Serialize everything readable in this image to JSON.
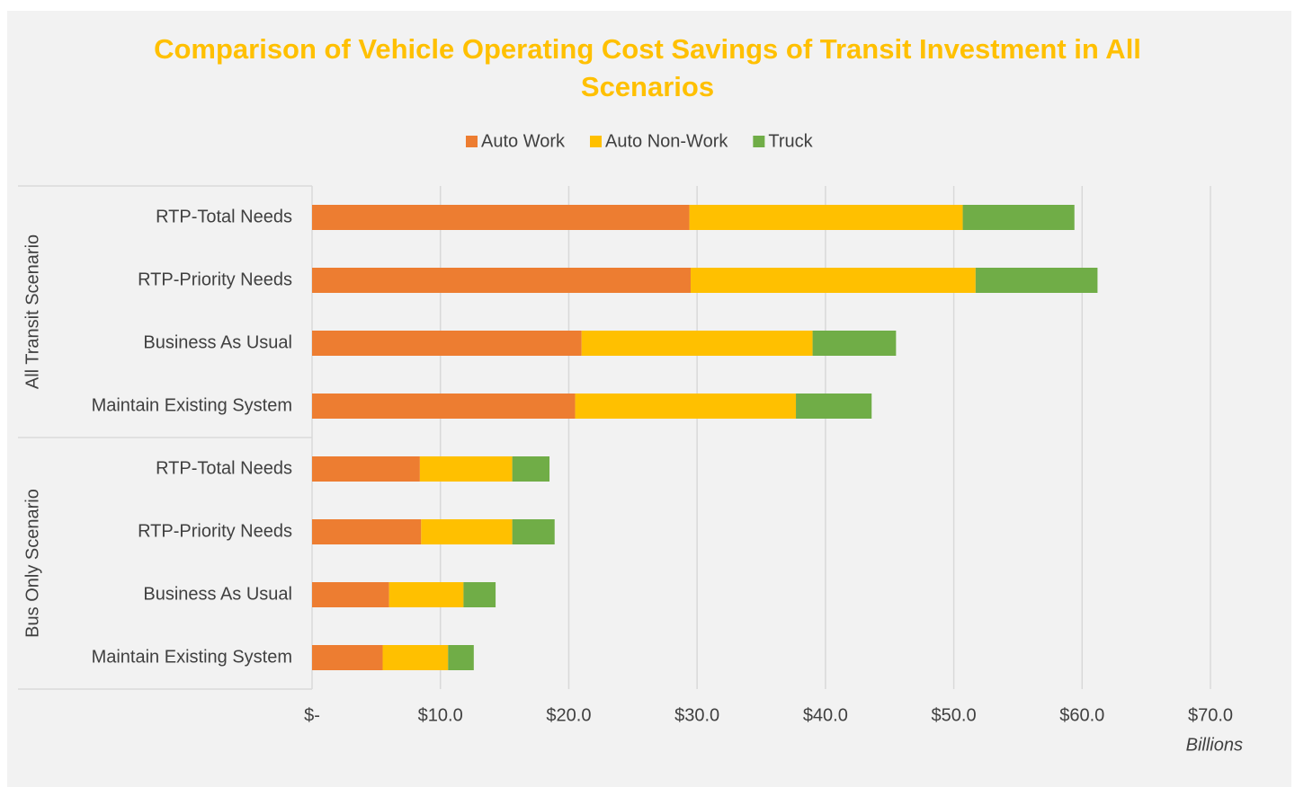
{
  "chart_data": {
    "type": "stacked-barh",
    "title": "Comparison of Vehicle Operating Cost Savings of Transit Investment in All Scenarios",
    "groups": [
      {
        "name": "All Transit Scenario",
        "categories": [
          "RTP-Total Needs",
          "RTP-Priority Needs",
          "Business As Usual",
          "Maintain Existing System"
        ]
      },
      {
        "name": "Bus Only Scenario",
        "categories": [
          "RTP-Total Needs",
          "RTP-Priority Needs",
          "Business As Usual",
          "Maintain Existing System"
        ]
      }
    ],
    "series": [
      {
        "name": "Auto Work",
        "color": "#ed7d31",
        "values": [
          29.4,
          29.5,
          21.0,
          20.5,
          8.4,
          8.5,
          6.0,
          5.5
        ]
      },
      {
        "name": "Auto Non-Work",
        "color": "#ffc000",
        "values": [
          21.3,
          22.2,
          18.0,
          17.2,
          7.2,
          7.1,
          5.8,
          5.1
        ]
      },
      {
        "name": "Truck",
        "color": "#70ad47",
        "values": [
          8.7,
          9.5,
          6.5,
          5.9,
          2.9,
          3.3,
          2.5,
          2.0
        ]
      }
    ],
    "xlim": [
      0,
      70
    ],
    "xticks": [
      {
        "value": 0,
        "label": "$-"
      },
      {
        "value": 10,
        "label": "$10.0"
      },
      {
        "value": 20,
        "label": "$20.0"
      },
      {
        "value": 30,
        "label": "$30.0"
      },
      {
        "value": 40,
        "label": "$40.0"
      },
      {
        "value": 50,
        "label": "$50.0"
      },
      {
        "value": 60,
        "label": "$60.0"
      },
      {
        "value": 70,
        "label": "$70.0"
      }
    ],
    "xlabel": "Billions",
    "grid": true,
    "legend": "top"
  }
}
